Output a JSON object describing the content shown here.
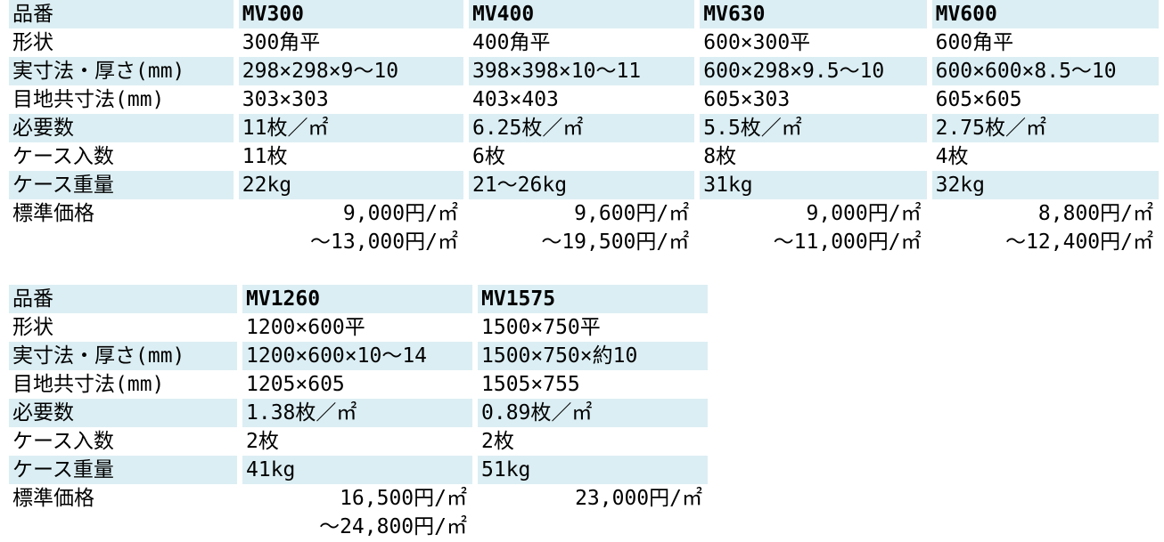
{
  "labels": [
    "品番",
    "形状",
    "実寸法・厚さ(mm)",
    "目地共寸法(mm)",
    "必要数",
    "ケース入数",
    "ケース重量",
    "標準価格"
  ],
  "group1": {
    "products": [
      {
        "code": "MV300",
        "shape": "300角平",
        "size": "298×298×9～10",
        "joint": "303×303",
        "qty": "11枚／㎡",
        "case_qty": "11枚",
        "weight": "22kg",
        "price1": "9,000円/㎡",
        "price2": "～13,000円/㎡"
      },
      {
        "code": "MV400",
        "shape": "400角平",
        "size": "398×398×10～11",
        "joint": "403×403",
        "qty": "6.25枚／㎡",
        "case_qty": "6枚",
        "weight": "21～26kg",
        "price1": "9,600円/㎡",
        "price2": "～19,500円/㎡"
      },
      {
        "code": "MV630",
        "shape": "600×300平",
        "size": "600×298×9.5～10",
        "joint": "605×303",
        "qty": "5.5枚／㎡",
        "case_qty": "8枚",
        "weight": "31kg",
        "price1": "9,000円/㎡",
        "price2": "～11,000円/㎡"
      },
      {
        "code": "MV600",
        "shape": "600角平",
        "size": "600×600×8.5～10",
        "joint": "605×605",
        "qty": "2.75枚／㎡",
        "case_qty": "4枚",
        "weight": "32kg",
        "price1": "8,800円/㎡",
        "price2": "～12,400円/㎡"
      }
    ]
  },
  "group2": {
    "products": [
      {
        "code": "MV1260",
        "shape": "1200×600平",
        "size": "1200×600×10～14",
        "joint": "1205×605",
        "qty": "1.38枚／㎡",
        "case_qty": "2枚",
        "weight": "41kg",
        "price1": "16,500円/㎡",
        "price2": "～24,800円/㎡"
      },
      {
        "code": "MV1575",
        "shape": "1500×750平",
        "size": "1500×750×約10",
        "joint": "1505×755",
        "qty": "0.89枚／㎡",
        "case_qty": "2枚",
        "weight": "51kg",
        "price1": "23,000円/㎡",
        "price2": ""
      }
    ]
  }
}
